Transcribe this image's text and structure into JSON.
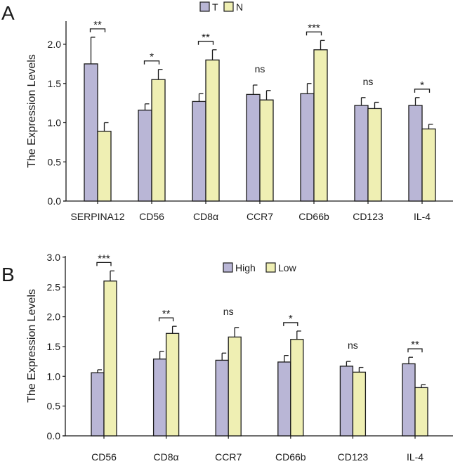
{
  "colors": {
    "series1": "#b9b6d6",
    "series2": "#efefb3",
    "stroke": "#1a1a1a"
  },
  "chart_data": [
    {
      "panel_label": "A",
      "type": "bar",
      "ylabel": "The Expression Levels",
      "ylim": [
        0,
        2.3
      ],
      "yticks": [
        "0.0",
        "0.5",
        "1.0",
        "1.5",
        "2.0"
      ],
      "legend": {
        "placement": "top-center",
        "entries": [
          "T",
          "N"
        ]
      },
      "categories": [
        "SERPINA12",
        "CD56",
        "CD8α",
        "CCR7",
        "CD66b",
        "CD123",
        "IL-4"
      ],
      "series": [
        {
          "name": "T",
          "values": [
            1.75,
            1.16,
            1.27,
            1.36,
            1.37,
            1.22,
            1.22
          ],
          "error_top": [
            2.09,
            1.24,
            1.37,
            1.48,
            1.5,
            1.32,
            1.32
          ]
        },
        {
          "name": "N",
          "values": [
            0.89,
            1.55,
            1.8,
            1.29,
            1.93,
            1.18,
            0.92
          ],
          "error_top": [
            1.0,
            1.68,
            1.93,
            1.41,
            2.05,
            1.26,
            0.98
          ]
        }
      ],
      "significance": [
        "**",
        "*",
        "**",
        "ns",
        "***",
        "ns",
        "*"
      ]
    },
    {
      "panel_label": "B",
      "type": "bar",
      "ylabel": "The Expression Levels",
      "ylim": [
        0,
        3.0
      ],
      "yticks": [
        "0.0",
        "0.5",
        "1.0",
        "1.5",
        "2.0",
        "2.5",
        "3.0"
      ],
      "legend": {
        "placement": "top-center",
        "entries": [
          "High",
          "Low"
        ]
      },
      "categories": [
        "CD56",
        "CD8α",
        "CCR7",
        "CD66b",
        "CD123",
        "IL-4"
      ],
      "series": [
        {
          "name": "High",
          "values": [
            1.06,
            1.29,
            1.27,
            1.24,
            1.17,
            1.21
          ],
          "error_top": [
            1.11,
            1.42,
            1.39,
            1.35,
            1.25,
            1.32
          ]
        },
        {
          "name": "Low",
          "values": [
            2.6,
            1.72,
            1.66,
            1.62,
            1.07,
            0.81
          ],
          "error_top": [
            2.77,
            1.84,
            1.82,
            1.76,
            1.15,
            0.86
          ]
        }
      ],
      "significance": [
        "***",
        "**",
        "ns",
        "*",
        "ns",
        "**"
      ]
    }
  ]
}
